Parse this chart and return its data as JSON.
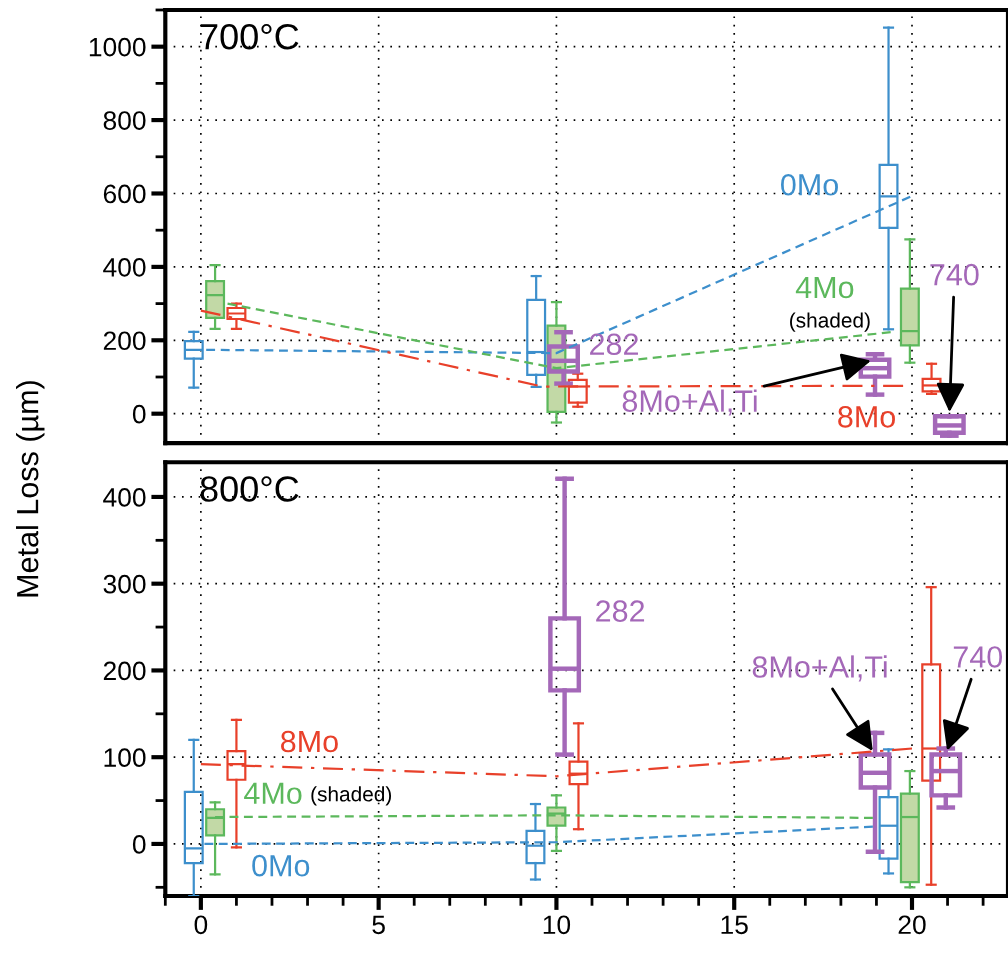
{
  "chart_data": [
    {
      "type": "box",
      "title": "700°C",
      "ylabel": "Metal Loss (µm)",
      "xlim": [
        -1,
        22.7
      ],
      "xticks": [
        0,
        5,
        10,
        15,
        20
      ],
      "ylim": [
        -80,
        1100
      ],
      "yticks": [
        0,
        200,
        400,
        600,
        800,
        1000
      ],
      "grid": true,
      "tick_labels": "y",
      "legend": false,
      "annotations": [
        "(shaded)"
      ],
      "series": [
        {
          "name": "0Mo",
          "color": "#3d8fcc",
          "x": [
            -0.2,
            9.43,
            19.34
          ],
          "boxes": [
            {
              "low": 71,
              "q1": 150,
              "median": 174,
              "q3": 198,
              "high": 223
            },
            {
              "low": 73,
              "q1": 106,
              "median": 168,
              "q3": 310,
              "high": 375
            },
            {
              "low": 230,
              "q1": 506,
              "median": 592,
              "q3": 678,
              "high": 1052
            }
          ]
        },
        {
          "name": "4Mo",
          "color": "#5cb85c",
          "colors": [
            "#c2d9a6",
            "#c2d9a6",
            "#c2d9a6"
          ],
          "x": [
            0.4,
            10.0,
            19.94
          ],
          "boxes": [
            {
              "low": 231,
              "q1": 261,
              "median": 323,
              "q3": 361,
              "high": 405
            },
            {
              "low": -24,
              "q1": 5,
              "median": 120,
              "q3": 240,
              "high": 304
            },
            {
              "low": 139,
              "q1": 186,
              "median": 225,
              "q3": 341,
              "high": 475
            }
          ]
        },
        {
          "name": "8Mo",
          "color": "#e8402a",
          "x": [
            1.0,
            10.6,
            20.55
          ],
          "boxes": [
            {
              "low": 231,
              "q1": 258,
              "median": 273,
              "q3": 288,
              "high": 300
            },
            {
              "low": 19,
              "q1": 30,
              "median": 74,
              "q3": 92,
              "high": 109
            },
            {
              "low": 54,
              "q1": 61,
              "median": 77,
              "q3": 95,
              "high": 136
            }
          ]
        },
        {
          "name": "282",
          "color": "#a468b8",
          "x": [
            10.2
          ],
          "boxes": [
            {
              "low": 82,
              "q1": 115,
              "median": 144,
              "q3": 183,
              "high": 222
            }
          ]
        },
        {
          "name": "8Mo+Al,Ti",
          "color": "#a468b8",
          "x": [
            18.96
          ],
          "boxes": [
            {
              "low": 52,
              "q1": 101,
              "median": 124,
              "q3": 147,
              "high": 162
            }
          ]
        },
        {
          "name": "740",
          "color": "#a468b8",
          "x": [
            21.05
          ],
          "boxes": [
            {
              "low": -60,
              "q1": -52,
              "median": -32,
              "q3": -7,
              "high": -7
            }
          ]
        },
        {
          "type": "line",
          "color": "#3d8fcc",
          "line_style": "dashed",
          "x": [
            0.15,
            10.0,
            19.95
          ],
          "values": [
            174,
            165,
            591
          ]
        },
        {
          "type": "line",
          "color": "#5cb85c",
          "line_style": "dashed",
          "x": [
            0.75,
            10.0,
            19.4
          ],
          "values": [
            300,
            124,
            222
          ]
        },
        {
          "type": "line",
          "color": "#e8402a",
          "line_style": "dashdot",
          "x": [
            0.0,
            9.6,
            19.75
          ],
          "values": [
            281,
            74,
            76
          ]
        }
      ]
    },
    {
      "type": "box",
      "title": "800°C",
      "xlim": [
        -1,
        22.7
      ],
      "xticks": [
        0,
        5,
        10,
        15,
        20
      ],
      "ylim": [
        -60,
        440
      ],
      "yticks": [
        0,
        100,
        200,
        300,
        400
      ],
      "grid": true,
      "legend": false,
      "annotations": [
        "(shaded)"
      ],
      "series": [
        {
          "name": "0Mo",
          "color": "#3d8fcc",
          "x": [
            -0.2,
            9.41,
            19.34
          ],
          "boxes": [
            {
              "low": -60,
              "q1": -22,
              "median": -5,
              "q3": 60,
              "high": 120
            },
            {
              "low": -41,
              "q1": -22,
              "median": -2,
              "q3": 15,
              "high": 46
            },
            {
              "low": -34,
              "q1": -17,
              "median": 21,
              "q3": 54,
              "high": 109
            }
          ]
        },
        {
          "name": "4Mo",
          "color": "#5cb85c",
          "colors": [
            "#c2d9a6",
            "#c2d9a6",
            "#c2d9a6"
          ],
          "x": [
            0.4,
            10.0,
            19.94
          ],
          "boxes": [
            {
              "low": -35,
              "q1": 10,
              "median": 30,
              "q3": 40,
              "high": 48
            },
            {
              "low": -8,
              "q1": 21,
              "median": 35,
              "q3": 42,
              "high": 56
            },
            {
              "low": -50,
              "q1": -44,
              "median": 31,
              "q3": 58,
              "high": 84
            }
          ]
        },
        {
          "name": "8Mo",
          "color": "#e8402a",
          "x": [
            1.0,
            10.62,
            20.54
          ],
          "boxes": [
            {
              "low": -4,
              "q1": 74,
              "median": 92,
              "q3": 107,
              "high": 143
            },
            {
              "low": 17,
              "q1": 69,
              "median": 81,
              "q3": 95,
              "high": 139
            },
            {
              "low": -47,
              "q1": 73,
              "median": 110,
              "q3": 207,
              "high": 296
            }
          ]
        },
        {
          "name": "282",
          "color": "#a468b8",
          "x": [
            10.23
          ],
          "boxes": [
            {
              "low": 103,
              "q1": 177,
              "median": 202,
              "q3": 260,
              "high": 421
            }
          ]
        },
        {
          "name": "8Mo+Al,Ti",
          "color": "#a468b8",
          "x": [
            18.96
          ],
          "boxes": [
            {
              "low": -9,
              "q1": 65,
              "median": 82,
              "q3": 103,
              "high": 128
            }
          ]
        },
        {
          "name": "740",
          "color": "#a468b8",
          "x": [
            20.95
          ],
          "boxes": [
            {
              "low": 42,
              "q1": 56,
              "median": 84,
              "q3": 103,
              "high": 110
            }
          ]
        },
        {
          "type": "line",
          "color": "#3d8fcc",
          "line_style": "dashed",
          "x": [
            0.1,
            10.0,
            18.9
          ],
          "values": [
            0,
            2,
            20
          ]
        },
        {
          "type": "line",
          "color": "#5cb85c",
          "line_style": "dashed",
          "x": [
            0.4,
            10.0,
            18.9
          ],
          "values": [
            31,
            33,
            30
          ]
        },
        {
          "type": "line",
          "color": "#e8402a",
          "line_style": "dashdot",
          "x": [
            0.0,
            10.0,
            20.0
          ],
          "values": [
            92,
            78,
            110
          ]
        }
      ]
    }
  ]
}
